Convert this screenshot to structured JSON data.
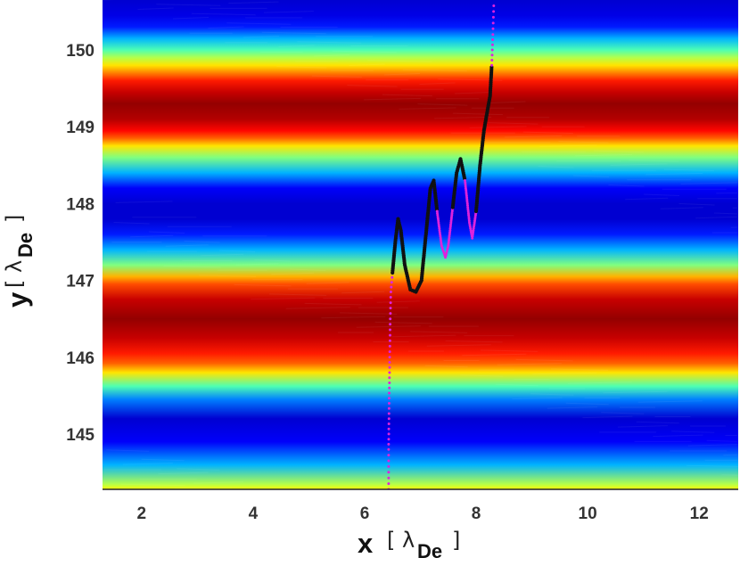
{
  "chart_data": {
    "type": "heatmap",
    "title": "",
    "xlabel": {
      "symbol": "x",
      "open": "[",
      "lambda": "λ",
      "sub": "De",
      "close": "]"
    },
    "ylabel": {
      "symbol": "y",
      "open": "[",
      "lambda": "λ",
      "sub": "De",
      "close": "]"
    },
    "xlim": [
      1.3,
      12.7
    ],
    "ylim": [
      144.28,
      150.65
    ],
    "xticks": [
      "2",
      "4",
      "6",
      "8",
      "10",
      "12"
    ],
    "yticks": [
      "145",
      "146",
      "147",
      "148",
      "149",
      "150"
    ],
    "colormap": "jet",
    "background_field": {
      "description_of_profile": "horizontal stripes, uniform in x, varying in y",
      "y": [
        144.28,
        144.35,
        144.6,
        144.9,
        145.2,
        145.45,
        145.62,
        145.8,
        145.92,
        146.05,
        146.25,
        146.5,
        146.75,
        146.95,
        147.05,
        147.2,
        147.4,
        147.6,
        147.8,
        148.0,
        148.2,
        148.4,
        148.6,
        148.75,
        148.85,
        148.95,
        149.1,
        149.3,
        149.45,
        149.6,
        149.7,
        149.8,
        149.9,
        150.0,
        150.15,
        150.3,
        150.45,
        150.65
      ],
      "level": [
        0.62,
        0.55,
        0.3,
        0.12,
        0.08,
        0.25,
        0.45,
        0.65,
        0.78,
        0.85,
        0.93,
        0.98,
        0.93,
        0.8,
        0.7,
        0.5,
        0.3,
        0.15,
        0.08,
        0.08,
        0.12,
        0.3,
        0.5,
        0.65,
        0.78,
        0.87,
        0.95,
        0.98,
        0.93,
        0.85,
        0.75,
        0.65,
        0.55,
        0.45,
        0.3,
        0.15,
        0.1,
        0.08
      ]
    },
    "trajectory": {
      "points": [
        [
          6.43,
          144.28
        ],
        [
          6.43,
          144.8
        ],
        [
          6.44,
          145.4
        ],
        [
          6.45,
          146.0
        ],
        [
          6.46,
          146.5
        ],
        [
          6.47,
          146.85
        ],
        [
          6.5,
          147.1
        ],
        [
          6.55,
          147.5
        ],
        [
          6.6,
          147.8
        ],
        [
          6.65,
          147.65
        ],
        [
          6.72,
          147.2
        ],
        [
          6.82,
          146.88
        ],
        [
          6.92,
          146.85
        ],
        [
          7.02,
          147.0
        ],
        [
          7.1,
          147.6
        ],
        [
          7.18,
          148.2
        ],
        [
          7.24,
          148.3
        ],
        [
          7.3,
          147.9
        ],
        [
          7.38,
          147.45
        ],
        [
          7.45,
          147.3
        ],
        [
          7.5,
          147.45
        ],
        [
          7.58,
          147.95
        ],
        [
          7.65,
          148.4
        ],
        [
          7.72,
          148.58
        ],
        [
          7.8,
          148.3
        ],
        [
          7.88,
          147.75
        ],
        [
          7.93,
          147.55
        ],
        [
          8.0,
          147.9
        ],
        [
          8.07,
          148.5
        ],
        [
          8.14,
          148.95
        ],
        [
          8.2,
          149.2
        ],
        [
          8.25,
          149.4
        ],
        [
          8.28,
          149.8
        ],
        [
          8.3,
          150.2
        ],
        [
          8.32,
          150.65
        ]
      ],
      "segments_colors": [
        {
          "from_y": 144.28,
          "to_y": 146.9,
          "color": "#dd22dd"
        },
        {
          "from_index": 6,
          "to_index": 17,
          "color": "#111111"
        },
        {
          "from_index": 17,
          "to_index": 21,
          "color": "#dd22dd"
        },
        {
          "from_index": 21,
          "to_index": 24,
          "color": "#111111"
        },
        {
          "from_index": 24,
          "to_index": 27,
          "color": "#dd22dd"
        },
        {
          "from_index": 27,
          "to_index": 32,
          "color": "#111111"
        },
        {
          "from_index": 32,
          "to_index": 34,
          "color": "#dd22dd"
        }
      ],
      "colors": {
        "primary": "#111111",
        "secondary": "#dd22dd"
      }
    }
  }
}
